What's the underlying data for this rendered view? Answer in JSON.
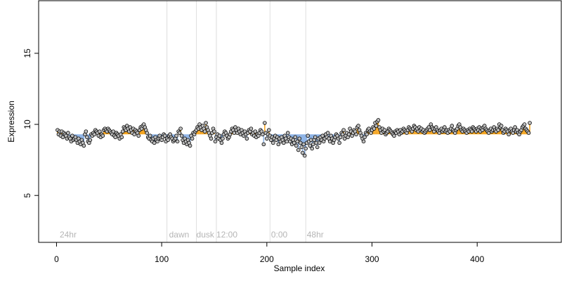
{
  "chart_data": {
    "type": "scatter",
    "title": "",
    "xlabel": "Sample index",
    "ylabel": "Expression",
    "xlim": [
      -17,
      480
    ],
    "ylim": [
      1.7,
      18.7
    ],
    "xticks": [
      0,
      100,
      200,
      300,
      400
    ],
    "yticks": [
      5,
      10,
      15
    ],
    "baseline": 9.3,
    "grid": false,
    "legend": "none",
    "colors": {
      "above": "#f5a623",
      "below": "#8fb4e6",
      "point_fill": "#bdbdbd",
      "point_stroke": "#000000",
      "divider": "#dedede",
      "region_text": "#b5b5b5"
    },
    "dividers": [
      105,
      133,
      152,
      203,
      237
    ],
    "regions": [
      {
        "x": 3,
        "label": "24hr"
      },
      {
        "x": 107,
        "label": "dawn"
      },
      {
        "x": 133,
        "label": "dusk"
      },
      {
        "x": 152,
        "label": "12:00"
      },
      {
        "x": 204,
        "label": "0:00"
      },
      {
        "x": 238,
        "label": "48hr"
      }
    ],
    "series": [
      {
        "x_start": 1,
        "values": [
          9.6,
          9.3,
          9.5,
          9.2,
          9.5,
          9.1,
          9.4,
          9.3,
          9.2,
          9.0,
          9.4,
          9.1,
          9.0,
          8.8,
          9.2,
          8.9,
          9.0,
          9.1,
          8.9,
          8.7,
          9.0,
          8.8,
          8.6,
          8.9,
          8.7,
          8.5,
          9.3,
          9.5,
          9.1,
          8.8,
          8.7,
          8.9,
          9.3,
          9.2,
          9.4,
          9.3,
          9.6,
          9.5,
          9.4,
          9.2,
          9.5,
          9.1,
          9.3,
          9.2,
          9.6,
          9.7,
          9.6,
          9.5,
          9.7,
          9.6,
          9.5,
          9.4,
          9.3,
          9.5,
          9.2,
          9.1,
          9.4,
          9.3,
          9.2,
          9.0,
          9.3,
          9.1,
          9.5,
          9.8,
          9.7,
          9.6,
          9.9,
          9.7,
          9.5,
          9.8,
          9.6,
          9.4,
          9.7,
          9.3,
          9.6,
          9.5,
          9.4,
          9.2,
          9.6,
          9.8,
          9.7,
          9.9,
          10.0,
          9.8,
          9.6,
          9.4,
          9.1,
          9.0,
          9.2,
          8.9,
          8.8,
          9.0,
          8.7,
          9.1,
          8.9,
          8.8,
          9.0,
          9.2,
          9.0,
          8.9,
          9.1,
          9.3,
          9.2,
          8.8,
          9.0,
          8.9,
          9.2,
          9.3,
          9.1,
          9.0,
          8.8,
          8.9,
          9.0,
          9.2,
          8.8,
          9.5,
          9.4,
          9.7,
          9.2,
          8.9,
          8.7,
          9.0,
          8.8,
          8.6,
          8.9,
          8.7,
          8.5,
          9.2,
          9.0,
          9.4,
          9.3,
          9.5,
          9.6,
          9.8,
          9.7,
          10.0,
          9.8,
          9.6,
          9.9,
          9.7,
          9.5,
          10.1,
          9.8,
          9.6,
          9.4,
          9.2,
          9.0,
          9.4,
          9.7,
          9.5,
          8.8,
          9.1,
          9.3,
          9.0,
          9.2,
          8.9,
          8.7,
          9.0,
          9.3,
          9.5,
          9.4,
          9.2,
          9.0,
          9.1,
          9.3,
          9.5,
          9.7,
          9.6,
          9.4,
          9.8,
          9.6,
          9.4,
          9.7,
          9.5,
          9.3,
          9.6,
          9.4,
          9.2,
          9.5,
          9.3,
          9.0,
          9.4,
          9.6,
          9.5,
          9.7,
          9.3,
          9.4,
          9.2,
          9.5,
          9.1,
          9.3,
          9.2,
          9.4,
          9.6,
          9.5,
          9.3,
          8.6,
          10.1,
          9.4,
          9.0,
          9.3,
          9.6,
          9.2,
          8.9,
          9.1,
          8.7,
          9.0,
          9.2,
          8.9,
          9.1,
          8.6,
          9.0,
          8.8,
          9.1,
          8.9,
          8.7,
          9.2,
          9.0,
          8.8,
          9.4,
          9.1,
          8.8,
          9.0,
          8.6,
          8.9,
          8.7,
          9.1,
          8.5,
          8.8,
          8.2,
          9.0,
          8.7,
          8.4,
          8.0,
          8.6,
          7.8,
          8.3,
          8.7,
          9.2,
          8.8,
          8.5,
          8.9,
          8.3,
          8.6,
          8.9,
          9.1,
          8.7,
          8.4,
          9.0,
          8.7,
          9.1,
          8.9,
          9.2,
          8.8,
          9.0,
          9.3,
          9.1,
          9.4,
          9.0,
          8.8,
          9.2,
          9.0,
          8.7,
          8.9,
          9.1,
          9.3,
          9.2,
          9.0,
          8.7,
          9.1,
          9.4,
          9.3,
          9.6,
          9.0,
          9.2,
          9.4,
          9.1,
          9.3,
          9.7,
          9.5,
          9.2,
          9.4,
          9.6,
          9.5,
          9.3,
          9.8,
          9.9,
          9.6,
          9.4,
          9.2,
          9.0,
          8.8,
          9.1,
          9.4,
          9.3,
          9.6,
          9.7,
          9.5,
          9.4,
          9.6,
          9.8,
          9.7,
          10.1,
          9.9,
          10.2,
          10.3,
          9.8,
          9.6,
          9.4,
          9.7,
          9.5,
          9.6,
          9.3,
          9.4,
          9.5,
          9.7,
          9.6,
          9.5,
          9.4,
          9.3,
          9.2,
          9.5,
          9.4,
          9.6,
          9.5,
          9.3,
          9.6,
          9.4,
          9.5,
          9.7,
          9.6,
          9.5,
          9.4,
          9.6,
          9.8,
          9.7,
          9.6,
          9.5,
          9.7,
          9.9,
          9.8,
          9.6,
          9.7,
          9.5,
          9.8,
          9.6,
          9.7,
          9.5,
          9.6,
          9.4,
          9.5,
          9.6,
          9.7,
          9.8,
          9.6,
          10.0,
          9.8,
          9.7,
          9.5,
          9.7,
          9.8,
          9.6,
          9.5,
          9.4,
          9.6,
          9.7,
          9.5,
          9.6,
          9.8,
          9.5,
          9.6,
          9.4,
          9.6,
          9.5,
          9.7,
          9.9,
          9.6,
          9.5,
          9.4,
          9.6,
          9.7,
          9.9,
          10.0,
          9.8,
          9.6,
          9.5,
          9.7,
          9.6,
          9.5,
          9.4,
          9.6,
          9.5,
          9.7,
          9.6,
          9.5,
          9.8,
          9.7,
          9.6,
          9.5,
          9.7,
          9.6,
          9.8,
          9.5,
          9.7,
          9.6,
          9.8,
          9.9,
          9.7,
          9.6,
          9.5,
          9.4,
          9.6,
          9.7,
          9.5,
          9.6,
          9.8,
          9.6,
          9.5,
          9.7,
          9.6,
          10.0,
          9.8,
          9.9,
          9.6,
          9.4,
          9.5,
          9.7,
          9.6,
          9.5,
          9.3,
          9.6,
          9.7,
          9.5,
          9.4,
          9.6,
          9.8,
          9.5,
          9.6,
          9.4,
          9.3,
          9.5,
          9.6,
          9.8,
          9.9,
          10.0,
          9.7,
          9.6,
          9.5,
          9.4,
          10.1
        ]
      }
    ]
  }
}
